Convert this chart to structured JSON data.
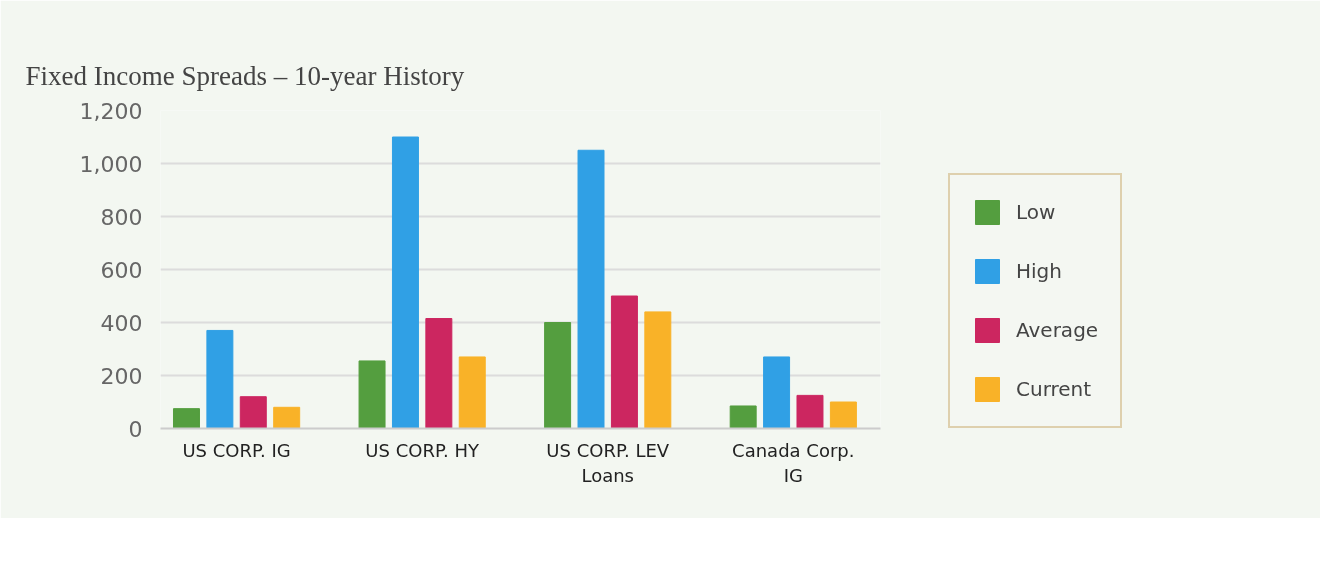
{
  "chart_data": {
    "type": "bar",
    "title": "Fixed Income Spreads – 10-year History",
    "categories": [
      "US CORP. IG",
      "US CORP. HY",
      "US CORP. LEV\nLoans",
      "Canada Corp.\nIG"
    ],
    "series": [
      {
        "name": "Low",
        "color": "#549e3f",
        "values": [
          75,
          255,
          400,
          85
        ]
      },
      {
        "name": "High",
        "color": "#30a0e5",
        "values": [
          370,
          1100,
          1050,
          270
        ]
      },
      {
        "name": "Average",
        "color": "#cc2660",
        "values": [
          120,
          415,
          500,
          125
        ]
      },
      {
        "name": "Current",
        "color": "#f9b228",
        "values": [
          80,
          270,
          440,
          100
        ]
      }
    ],
    "ylim": [
      0,
      1200
    ],
    "yticks": [
      0,
      200,
      400,
      600,
      800,
      {
        "value": 1000,
        "label": "1,000"
      },
      {
        "value": 1200,
        "label": "1,200"
      }
    ],
    "grid": "y",
    "legend": "right"
  }
}
